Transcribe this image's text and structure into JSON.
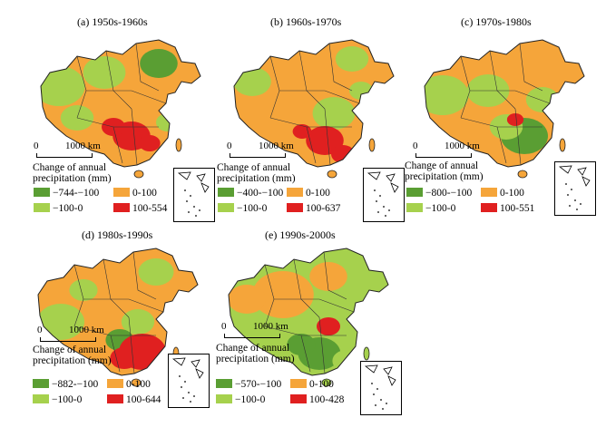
{
  "legend_title": "Change of annual precipitation (mm)",
  "scale": {
    "zero": "0",
    "distance": "1000 km"
  },
  "colors": {
    "strong_decrease": "#5a9e33",
    "decrease": "#a6d14d",
    "increase": "#f5a53a",
    "strong_increase": "#e02020"
  },
  "panels": [
    {
      "title": "(a) 1950s-1960s",
      "classes": [
        "−744-−100",
        "−100-0",
        "0-100",
        "100-554"
      ]
    },
    {
      "title": "(b) 1960s-1970s",
      "classes": [
        "−400-−100",
        "−100-0",
        "0-100",
        "100-637"
      ]
    },
    {
      "title": "(c) 1970s-1980s",
      "classes": [
        "−800-−100",
        "−100-0",
        "0-100",
        "100-551"
      ]
    },
    {
      "title": "(d) 1980s-1990s",
      "classes": [
        "−882-−100",
        "−100-0",
        "0-100",
        "100-644"
      ]
    },
    {
      "title": "(e) 1990s-2000s",
      "classes": [
        "−570-−100",
        "−100-0",
        "0-100",
        "100-428"
      ]
    }
  ]
}
